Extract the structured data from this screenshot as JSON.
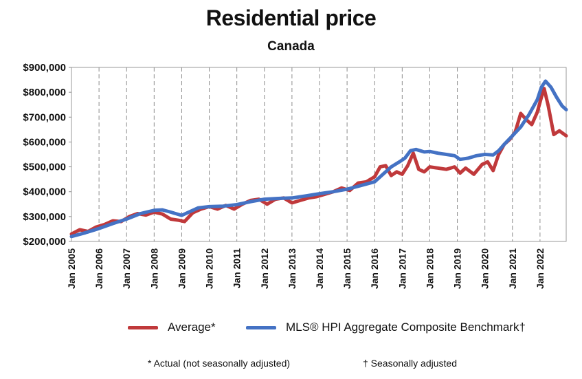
{
  "chart_data": {
    "type": "line",
    "title": "Residential price",
    "subtitle": "Canada",
    "ylim": [
      200000,
      900000
    ],
    "yticks": [
      200000,
      300000,
      400000,
      500000,
      600000,
      700000,
      800000,
      900000
    ],
    "ytick_labels": [
      "$200,000",
      "$300,000",
      "$400,000",
      "$500,000",
      "$600,000",
      "$700,000",
      "$800,000",
      "$900,000"
    ],
    "xlim": [
      2005.0,
      2022.95
    ],
    "xticks": [
      2005,
      2006,
      2007,
      2008,
      2009,
      2010,
      2011,
      2012,
      2013,
      2014,
      2015,
      2016,
      2017,
      2018,
      2019,
      2020,
      2021,
      2022
    ],
    "xtick_labels": [
      "Jan 2005",
      "Jan 2006",
      "Jan 2007",
      "Jan 2008",
      "Jan 2009",
      "Jan 2010",
      "Jan 2011",
      "Jan 2012",
      "Jan 2013",
      "Jan 2014",
      "Jan 2015",
      "Jan 2016",
      "Jan 2017",
      "Jan 2018",
      "Jan 2019",
      "Jan 2020",
      "Jan 2021",
      "Jan 2022"
    ],
    "grid": "vertical-dashed",
    "series": [
      {
        "name": "Average*",
        "color": "#c0393b",
        "x": [
          2005.0,
          2005.3,
          2005.6,
          2005.9,
          2006.2,
          2006.5,
          2006.8,
          2007.1,
          2007.4,
          2007.7,
          2008.0,
          2008.3,
          2008.6,
          2008.9,
          2009.1,
          2009.4,
          2009.7,
          2010.0,
          2010.3,
          2010.6,
          2010.9,
          2011.2,
          2011.5,
          2011.8,
          2012.1,
          2012.4,
          2012.7,
          2013.0,
          2013.3,
          2013.6,
          2013.9,
          2014.2,
          2014.5,
          2014.8,
          2015.1,
          2015.4,
          2015.7,
          2016.0,
          2016.2,
          2016.4,
          2016.6,
          2016.8,
          2017.0,
          2017.2,
          2017.4,
          2017.6,
          2017.8,
          2018.0,
          2018.3,
          2018.6,
          2018.9,
          2019.1,
          2019.3,
          2019.6,
          2019.9,
          2020.1,
          2020.3,
          2020.5,
          2020.7,
          2020.9,
          2021.1,
          2021.3,
          2021.5,
          2021.7,
          2021.9,
          2022.05,
          2022.15,
          2022.3,
          2022.5,
          2022.7,
          2022.95
        ],
        "values": [
          230000,
          247000,
          240000,
          258000,
          268000,
          283000,
          280000,
          300000,
          312000,
          306000,
          318000,
          310000,
          290000,
          285000,
          280000,
          315000,
          330000,
          340000,
          330000,
          345000,
          330000,
          350000,
          365000,
          370000,
          350000,
          370000,
          375000,
          355000,
          365000,
          375000,
          380000,
          390000,
          400000,
          415000,
          405000,
          435000,
          440000,
          460000,
          500000,
          505000,
          465000,
          480000,
          470000,
          505000,
          555000,
          490000,
          480000,
          500000,
          495000,
          490000,
          500000,
          475000,
          495000,
          470000,
          510000,
          520000,
          485000,
          550000,
          590000,
          610000,
          640000,
          715000,
          690000,
          670000,
          720000,
          780000,
          815000,
          745000,
          630000,
          645000,
          625000
        ]
      },
      {
        "name": "MLS® HPI Aggregate Composite Benchmark†",
        "color": "#4472c4",
        "x": [
          2005.0,
          2005.5,
          2006.0,
          2006.5,
          2007.0,
          2007.5,
          2008.0,
          2008.3,
          2008.6,
          2009.0,
          2009.3,
          2009.6,
          2010.0,
          2010.5,
          2011.0,
          2011.5,
          2012.0,
          2012.5,
          2013.0,
          2013.5,
          2014.0,
          2014.5,
          2015.0,
          2015.5,
          2016.0,
          2016.3,
          2016.6,
          2016.9,
          2017.1,
          2017.3,
          2017.5,
          2017.8,
          2018.0,
          2018.3,
          2018.6,
          2018.9,
          2019.1,
          2019.4,
          2019.7,
          2020.0,
          2020.3,
          2020.5,
          2020.7,
          2021.0,
          2021.3,
          2021.6,
          2021.9,
          2022.05,
          2022.2,
          2022.4,
          2022.6,
          2022.8,
          2022.95
        ],
        "values": [
          220000,
          235000,
          252000,
          272000,
          290000,
          312000,
          325000,
          327000,
          318000,
          305000,
          320000,
          335000,
          340000,
          342000,
          348000,
          360000,
          370000,
          373000,
          375000,
          383000,
          392000,
          400000,
          410000,
          425000,
          440000,
          470000,
          500000,
          520000,
          535000,
          565000,
          570000,
          560000,
          562000,
          555000,
          550000,
          545000,
          530000,
          535000,
          545000,
          550000,
          548000,
          565000,
          590000,
          625000,
          660000,
          710000,
          770000,
          820000,
          845000,
          820000,
          780000,
          745000,
          730000
        ]
      }
    ],
    "legend": [
      {
        "label": "Average*",
        "color": "#c0393b"
      },
      {
        "label": "MLS® HPI Aggregate Composite Benchmark†",
        "color": "#4472c4"
      }
    ],
    "footnotes": [
      "* Actual (not seasonally adjusted)",
      "† Seasonally adjusted"
    ]
  }
}
